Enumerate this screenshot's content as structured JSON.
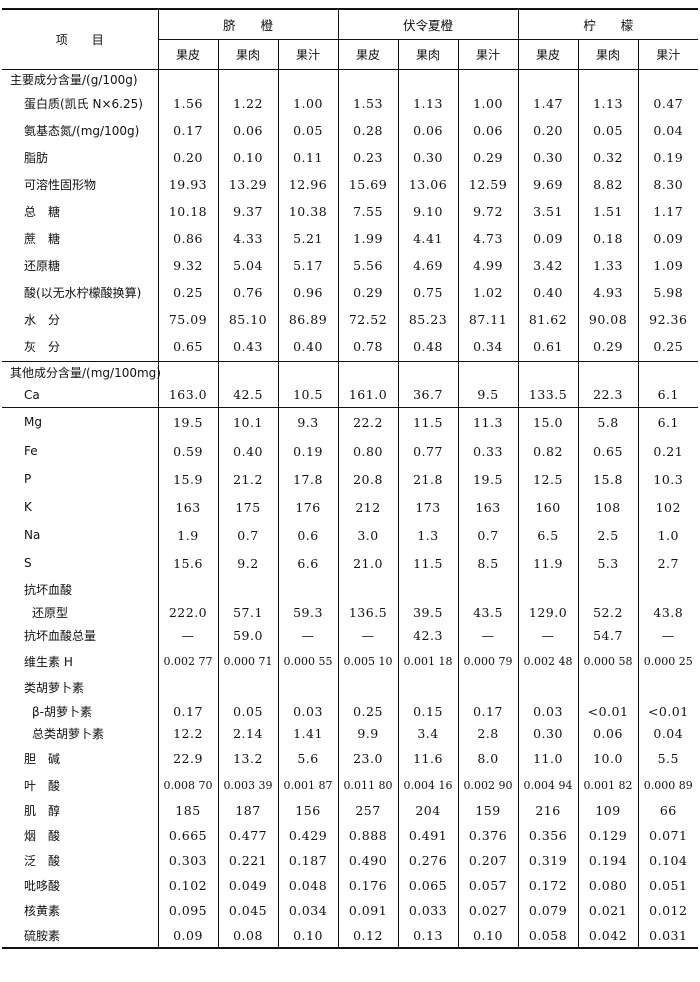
{
  "header": {
    "item": "项　　目",
    "groups": [
      "脐　　橙",
      "伏令夏橙",
      "柠　　檬"
    ],
    "parts": [
      "果皮",
      "果肉",
      "果汁",
      "果皮",
      "果肉",
      "果汁",
      "果皮",
      "果肉",
      "果汁"
    ]
  },
  "rows": [
    {
      "label": "主要成分含量/(g/100g)",
      "values": []
    },
    {
      "label": "蛋白质(凯氏 N×6.25)",
      "indent": true,
      "values": [
        "1.56",
        "1.22",
        "1.00",
        "1.53",
        "1.13",
        "1.00",
        "1.47",
        "1.13",
        "0.47"
      ]
    },
    {
      "label": "氨基态氮/(mg/100g)",
      "indent": true,
      "values": [
        "0.17",
        "0.06",
        "0.05",
        "0.28",
        "0.06",
        "0.06",
        "0.20",
        "0.05",
        "0.04"
      ]
    },
    {
      "label": "脂肪",
      "indent": true,
      "values": [
        "0.20",
        "0.10",
        "0.11",
        "0.23",
        "0.30",
        "0.29",
        "0.30",
        "0.32",
        "0.19"
      ]
    },
    {
      "label": "可溶性固形物",
      "indent": true,
      "values": [
        "19.93",
        "13.29",
        "12.96",
        "15.69",
        "13.06",
        "12.59",
        "9.69",
        "8.82",
        "8.30"
      ]
    },
    {
      "label": "总　糖",
      "indent": true,
      "values": [
        "10.18",
        "9.37",
        "10.38",
        "7.55",
        "9.10",
        "9.72",
        "3.51",
        "1.51",
        "1.17"
      ]
    },
    {
      "label": "蔗　糖",
      "indent": true,
      "values": [
        "0.86",
        "4.33",
        "5.21",
        "1.99",
        "4.41",
        "4.73",
        "0.09",
        "0.18",
        "0.09"
      ]
    },
    {
      "label": "还原糖",
      "indent": true,
      "values": [
        "9.32",
        "5.04",
        "5.17",
        "5.56",
        "4.69",
        "4.99",
        "3.42",
        "1.33",
        "1.09"
      ]
    },
    {
      "label": "酸(以无水柠檬酸换算)",
      "indent": true,
      "values": [
        "0.25",
        "0.76",
        "0.96",
        "0.29",
        "0.75",
        "1.02",
        "0.40",
        "4.93",
        "5.98"
      ]
    },
    {
      "label": "水　分",
      "indent": true,
      "values": [
        "75.09",
        "85.10",
        "86.89",
        "72.52",
        "85.23",
        "87.11",
        "81.62",
        "90.08",
        "92.36"
      ]
    },
    {
      "label": "灰　分",
      "indent": true,
      "values": [
        "0.65",
        "0.43",
        "0.40",
        "0.78",
        "0.48",
        "0.34",
        "0.61",
        "0.29",
        "0.25"
      ]
    },
    {
      "label": "其他成分含量/(mg/100mg)",
      "values": []
    },
    {
      "label": "Ca",
      "indent": true,
      "values": [
        "163.0",
        "42.5",
        "10.5",
        "161.0",
        "36.7",
        "9.5",
        "133.5",
        "22.3",
        "6.1"
      ]
    },
    {
      "label": "Mg",
      "indent": true,
      "values": [
        "19.5",
        "10.1",
        "9.3",
        "22.2",
        "11.5",
        "11.3",
        "15.0",
        "5.8",
        "6.1"
      ]
    },
    {
      "label": "Fe",
      "indent": true,
      "values": [
        "0.59",
        "0.40",
        "0.19",
        "0.80",
        "0.77",
        "0.33",
        "0.82",
        "0.65",
        "0.21"
      ]
    },
    {
      "label": "P",
      "indent": true,
      "values": [
        "15.9",
        "21.2",
        "17.8",
        "20.8",
        "21.8",
        "19.5",
        "12.5",
        "15.8",
        "10.3"
      ]
    },
    {
      "label": "K",
      "indent": true,
      "values": [
        "163",
        "175",
        "176",
        "212",
        "173",
        "163",
        "160",
        "108",
        "102"
      ]
    },
    {
      "label": "Na",
      "indent": true,
      "values": [
        "1.9",
        "0.7",
        "0.6",
        "3.0",
        "1.3",
        "0.7",
        "6.5",
        "2.5",
        "1.0"
      ]
    },
    {
      "label": "S",
      "indent": true,
      "values": [
        "15.6",
        "9.2",
        "6.6",
        "21.0",
        "11.5",
        "8.5",
        "11.9",
        "5.3",
        "2.7"
      ]
    },
    {
      "label": "抗坏血酸",
      "indent": true,
      "values": []
    },
    {
      "label": "还原型",
      "indent2": true,
      "values": [
        "222.0",
        "57.1",
        "59.3",
        "136.5",
        "39.5",
        "43.5",
        "129.0",
        "52.2",
        "43.8"
      ]
    },
    {
      "label": "抗坏血酸总量",
      "indent": true,
      "values": [
        "—",
        "59.0",
        "—",
        "—",
        "42.3",
        "—",
        "—",
        "54.7",
        "—"
      ]
    },
    {
      "label": "维生素 H",
      "indent": true,
      "values": [
        "0.002 77",
        "0.000 71",
        "0.000 55",
        "0.005 10",
        "0.001 18",
        "0.000 79",
        "0.002 48",
        "0.000 58",
        "0.000 25"
      ]
    },
    {
      "label": "类胡萝卜素",
      "indent": true,
      "values": []
    },
    {
      "label": "β-胡萝卜素",
      "indent2": true,
      "values": [
        "0.17",
        "0.05",
        "0.03",
        "0.25",
        "0.15",
        "0.17",
        "0.03",
        "<0.01",
        "<0.01"
      ]
    },
    {
      "label": "总类胡萝卜素",
      "indent2": true,
      "values": [
        "12.2",
        "2.14",
        "1.41",
        "9.9",
        "3.4",
        "2.8",
        "0.30",
        "0.06",
        "0.04"
      ]
    },
    {
      "label": "胆　碱",
      "indent": true,
      "values": [
        "22.9",
        "13.2",
        "5.6",
        "23.0",
        "11.6",
        "8.0",
        "11.0",
        "10.0",
        "5.5"
      ]
    },
    {
      "label": "叶　酸",
      "indent": true,
      "values": [
        "0.008 70",
        "0.003 39",
        "0.001 87",
        "0.011 80",
        "0.004 16",
        "0.002 90",
        "0.004 94",
        "0.001 82",
        "0.000 89"
      ]
    },
    {
      "label": "肌　醇",
      "indent": true,
      "values": [
        "185",
        "187",
        "156",
        "257",
        "204",
        "159",
        "216",
        "109",
        "66"
      ]
    },
    {
      "label": "烟　酸",
      "indent": true,
      "values": [
        "0.665",
        "0.477",
        "0.429",
        "0.888",
        "0.491",
        "0.376",
        "0.356",
        "0.129",
        "0.071"
      ]
    },
    {
      "label": "泛　酸",
      "indent": true,
      "values": [
        "0.303",
        "0.221",
        "0.187",
        "0.490",
        "0.276",
        "0.207",
        "0.319",
        "0.194",
        "0.104"
      ]
    },
    {
      "label": "吡哆酸",
      "indent": true,
      "values": [
        "0.102",
        "0.049",
        "0.048",
        "0.176",
        "0.065",
        "0.057",
        "0.172",
        "0.080",
        "0.051"
      ]
    },
    {
      "label": "核黄素",
      "indent": true,
      "values": [
        "0.095",
        "0.045",
        "0.034",
        "0.091",
        "0.033",
        "0.027",
        "0.079",
        "0.021",
        "0.012"
      ]
    },
    {
      "label": "硫胺素",
      "indent": true,
      "values": [
        "0.09",
        "0.08",
        "0.10",
        "0.12",
        "0.13",
        "0.10",
        "0.058",
        "0.042",
        "0.031"
      ]
    }
  ]
}
